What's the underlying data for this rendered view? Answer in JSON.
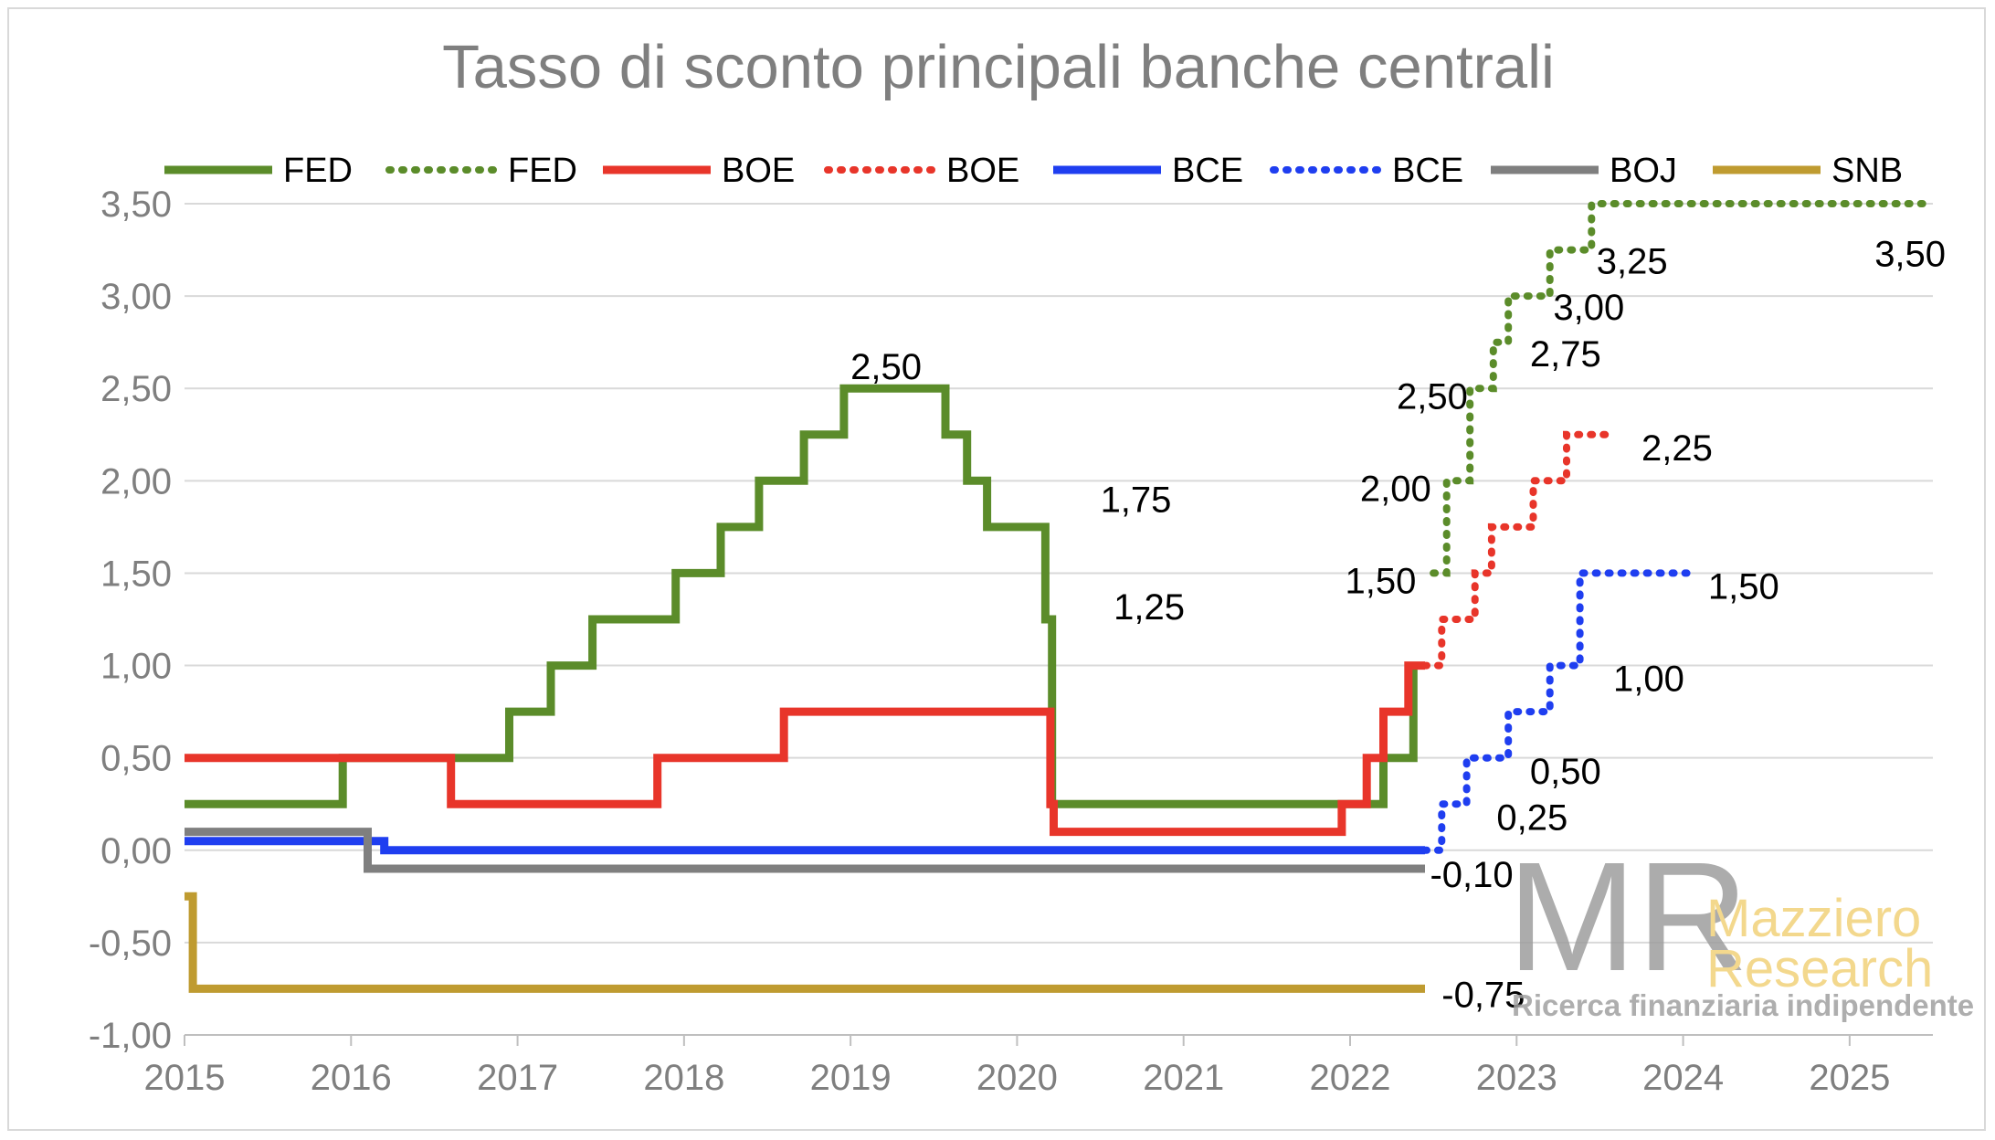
{
  "chart_data": {
    "type": "line",
    "title": "Tasso di sconto principali banche centrali",
    "xlabel": "",
    "ylabel": "",
    "xlim": [
      2015,
      2025.5
    ],
    "ylim": [
      -1.0,
      3.5
    ],
    "y_ticks": [
      "3,50",
      "3,00",
      "2,50",
      "2,00",
      "1,50",
      "1,00",
      "0,50",
      "0,00",
      "-0,50",
      "-1,00"
    ],
    "y_tick_values": [
      3.5,
      3.0,
      2.5,
      2.0,
      1.5,
      1.0,
      0.5,
      0.0,
      -0.5,
      -1.0
    ],
    "x_ticks": [
      "2015",
      "2016",
      "2017",
      "2018",
      "2019",
      "2020",
      "2021",
      "2022",
      "2023",
      "2024",
      "2025"
    ],
    "x_tick_values": [
      2015,
      2016,
      2017,
      2018,
      2019,
      2020,
      2021,
      2022,
      2023,
      2024,
      2025
    ],
    "grid": "horizontal",
    "legend_position": "top",
    "series": [
      {
        "name": "FED",
        "style": "solid",
        "color": "#5b8c2a",
        "points": [
          [
            2015,
            0.25
          ],
          [
            2015.95,
            0.25
          ],
          [
            2015.95,
            0.5
          ],
          [
            2016.95,
            0.5
          ],
          [
            2016.95,
            0.75
          ],
          [
            2017.2,
            0.75
          ],
          [
            2017.2,
            1.0
          ],
          [
            2017.45,
            1.0
          ],
          [
            2017.45,
            1.25
          ],
          [
            2017.95,
            1.25
          ],
          [
            2017.95,
            1.5
          ],
          [
            2018.22,
            1.5
          ],
          [
            2018.22,
            1.75
          ],
          [
            2018.45,
            1.75
          ],
          [
            2018.45,
            2.0
          ],
          [
            2018.72,
            2.0
          ],
          [
            2018.72,
            2.25
          ],
          [
            2018.96,
            2.25
          ],
          [
            2018.96,
            2.5
          ],
          [
            2019.57,
            2.5
          ],
          [
            2019.57,
            2.25
          ],
          [
            2019.7,
            2.25
          ],
          [
            2019.7,
            2.0
          ],
          [
            2019.82,
            2.0
          ],
          [
            2019.82,
            1.75
          ],
          [
            2020.17,
            1.75
          ],
          [
            2020.17,
            1.25
          ],
          [
            2020.21,
            1.25
          ],
          [
            2020.21,
            0.25
          ],
          [
            2022.2,
            0.25
          ],
          [
            2022.2,
            0.5
          ],
          [
            2022.38,
            0.5
          ],
          [
            2022.38,
            1.0
          ]
        ]
      },
      {
        "name": "FED",
        "style": "dotted",
        "color": "#5b8c2a",
        "points": [
          [
            2022.5,
            1.5
          ],
          [
            2022.58,
            1.5
          ],
          [
            2022.58,
            2.0
          ],
          [
            2022.72,
            2.0
          ],
          [
            2022.72,
            2.5
          ],
          [
            2022.86,
            2.5
          ],
          [
            2022.86,
            2.75
          ],
          [
            2022.95,
            2.75
          ],
          [
            2022.95,
            3.0
          ],
          [
            2023.2,
            3.0
          ],
          [
            2023.2,
            3.25
          ],
          [
            2023.45,
            3.25
          ],
          [
            2023.45,
            3.5
          ],
          [
            2025.5,
            3.5
          ]
        ]
      },
      {
        "name": "BOE",
        "style": "solid",
        "color": "#e8352a",
        "points": [
          [
            2015,
            0.5
          ],
          [
            2016.6,
            0.5
          ],
          [
            2016.6,
            0.25
          ],
          [
            2017.84,
            0.25
          ],
          [
            2017.84,
            0.5
          ],
          [
            2018.6,
            0.5
          ],
          [
            2018.6,
            0.75
          ],
          [
            2020.2,
            0.75
          ],
          [
            2020.2,
            0.25
          ],
          [
            2020.22,
            0.25
          ],
          [
            2020.22,
            0.1
          ],
          [
            2021.95,
            0.1
          ],
          [
            2021.95,
            0.25
          ],
          [
            2022.1,
            0.25
          ],
          [
            2022.1,
            0.5
          ],
          [
            2022.2,
            0.5
          ],
          [
            2022.2,
            0.75
          ],
          [
            2022.35,
            0.75
          ],
          [
            2022.35,
            1.0
          ],
          [
            2022.45,
            1.0
          ]
        ]
      },
      {
        "name": "BOE",
        "style": "dotted",
        "color": "#e8352a",
        "points": [
          [
            2022.45,
            1.0
          ],
          [
            2022.55,
            1.0
          ],
          [
            2022.55,
            1.25
          ],
          [
            2022.75,
            1.25
          ],
          [
            2022.75,
            1.5
          ],
          [
            2022.85,
            1.5
          ],
          [
            2022.85,
            1.75
          ],
          [
            2023.1,
            1.75
          ],
          [
            2023.1,
            2.0
          ],
          [
            2023.3,
            2.0
          ],
          [
            2023.3,
            2.25
          ],
          [
            2023.55,
            2.25
          ]
        ]
      },
      {
        "name": "BCE",
        "style": "solid",
        "color": "#1f3ef0",
        "points": [
          [
            2015,
            0.05
          ],
          [
            2016.2,
            0.05
          ],
          [
            2016.2,
            0.0
          ],
          [
            2022.45,
            0.0
          ]
        ]
      },
      {
        "name": "BCE",
        "style": "dotted",
        "color": "#1f3ef0",
        "points": [
          [
            2022.45,
            0.0
          ],
          [
            2022.55,
            0.0
          ],
          [
            2022.55,
            0.25
          ],
          [
            2022.7,
            0.25
          ],
          [
            2022.7,
            0.5
          ],
          [
            2022.95,
            0.5
          ],
          [
            2022.95,
            0.75
          ],
          [
            2023.2,
            0.75
          ],
          [
            2023.2,
            1.0
          ],
          [
            2023.38,
            1.0
          ],
          [
            2023.38,
            1.5
          ],
          [
            2024.05,
            1.5
          ]
        ]
      },
      {
        "name": "BOJ",
        "style": "solid",
        "color": "#7f7f7f",
        "points": [
          [
            2015,
            0.1
          ],
          [
            2016.1,
            0.1
          ],
          [
            2016.1,
            -0.1
          ],
          [
            2022.45,
            -0.1
          ]
        ]
      },
      {
        "name": "SNB",
        "style": "solid",
        "color": "#bf9b30",
        "points": [
          [
            2015,
            -0.25
          ],
          [
            2015.05,
            -0.25
          ],
          [
            2015.05,
            -0.75
          ],
          [
            2022.45,
            -0.75
          ]
        ]
      }
    ],
    "annotations": [
      {
        "text": "2,50",
        "x": 2019.0,
        "y": 2.62
      },
      {
        "text": "1,75",
        "x": 2020.5,
        "y": 1.9
      },
      {
        "text": "1,25",
        "x": 2020.58,
        "y": 1.32
      },
      {
        "text": "-0,10",
        "x": 2022.48,
        "y": -0.13
      },
      {
        "text": "-0,75",
        "x": 2022.55,
        "y": -0.78
      },
      {
        "text": "1,50",
        "x": 2021.97,
        "y": 1.46
      },
      {
        "text": "2,00",
        "x": 2022.06,
        "y": 1.96
      },
      {
        "text": "2,50",
        "x": 2022.28,
        "y": 2.46
      },
      {
        "text": "2,75",
        "x": 2023.08,
        "y": 2.69
      },
      {
        "text": "3,00",
        "x": 2023.22,
        "y": 2.94
      },
      {
        "text": "3,25",
        "x": 2023.48,
        "y": 3.19
      },
      {
        "text": "3,50",
        "x": 2025.15,
        "y": 3.23
      },
      {
        "text": "2,25",
        "x": 2023.75,
        "y": 2.18
      },
      {
        "text": "1,50",
        "x": 2024.15,
        "y": 1.43
      },
      {
        "text": "1,00",
        "x": 2023.58,
        "y": 0.93
      },
      {
        "text": "0,50",
        "x": 2023.08,
        "y": 0.43
      },
      {
        "text": "0,25",
        "x": 2022.88,
        "y": 0.18
      }
    ]
  },
  "watermark": {
    "logo": "MR",
    "name_line1": "Mazziero",
    "name_line2": "Research",
    "tagline": "Ricerca finanziaria indipendente"
  }
}
